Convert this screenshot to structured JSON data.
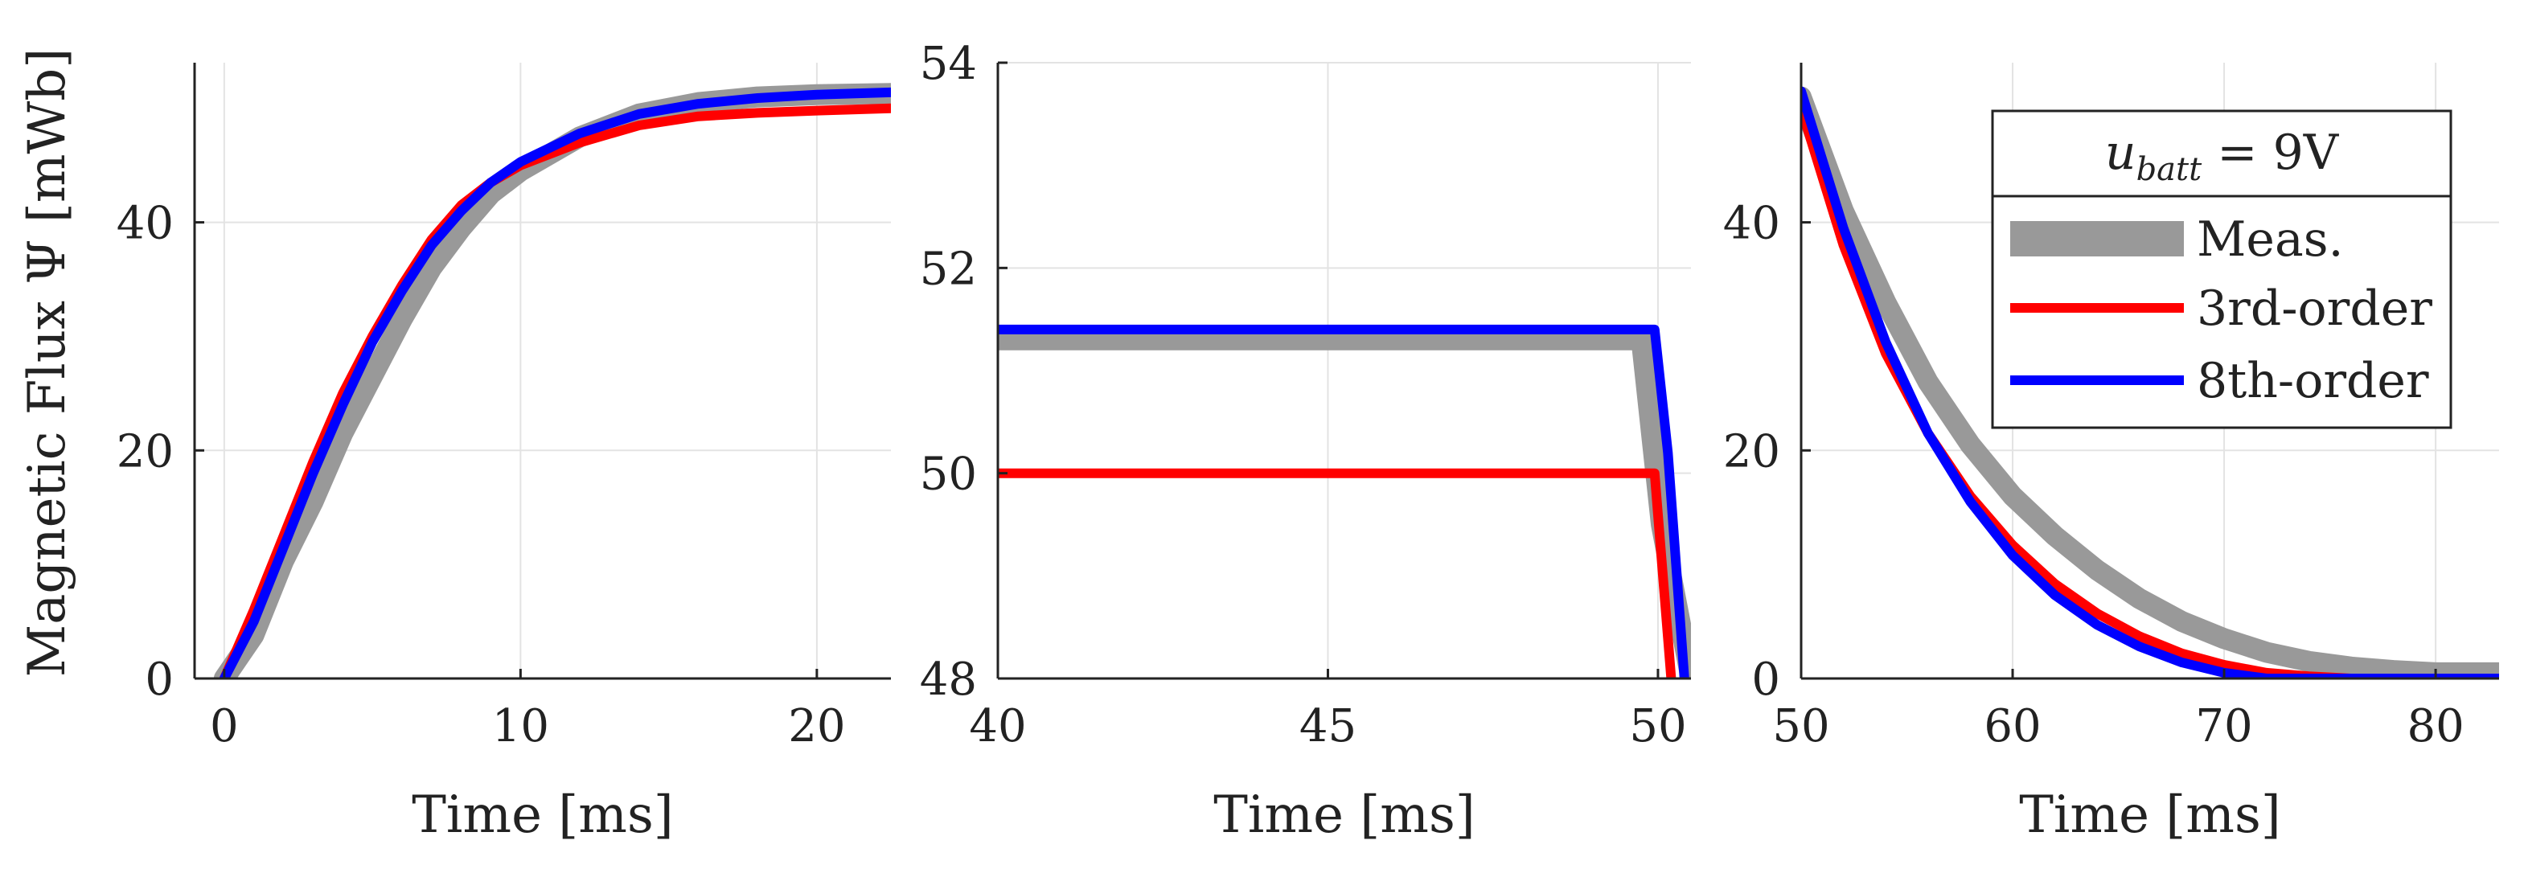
{
  "chart_data": [
    {
      "type": "line",
      "xlabel": "Time [ms]",
      "ylabel": "Magnetic Flux Ψ [mWb]",
      "xlim": [
        -1,
        22.5
      ],
      "ylim": [
        0,
        54
      ],
      "xticks": [
        0,
        10,
        20
      ],
      "yticks": [
        0,
        20,
        40
      ],
      "grid": true,
      "series": [
        {
          "name": "Meas.",
          "color": "#999999",
          "x": [
            0,
            0.5,
            1,
            2,
            3,
            4,
            5,
            6,
            7,
            8,
            9,
            10,
            12,
            14,
            16,
            18,
            20,
            22.5
          ],
          "y": [
            0,
            1.9,
            3.8,
            10.3,
            15.5,
            21.5,
            26.5,
            31.5,
            36,
            39.5,
            42.5,
            44.5,
            47.5,
            49.5,
            50.5,
            51,
            51.2,
            51.3
          ]
        },
        {
          "name": "3rd-order",
          "color": "#ff0000",
          "x": [
            0,
            0.5,
            1,
            2,
            3,
            4,
            5,
            6,
            7,
            8,
            9,
            10,
            12,
            14,
            16,
            18,
            20,
            22.5
          ],
          "y": [
            0,
            3,
            6,
            12.5,
            19,
            25,
            30,
            34.5,
            38.5,
            41.5,
            43.5,
            45,
            47,
            48.5,
            49.3,
            49.6,
            49.8,
            50
          ]
        },
        {
          "name": "8th-order",
          "color": "#0000ff",
          "x": [
            0,
            0.5,
            1,
            2,
            3,
            4,
            5,
            6,
            7,
            8,
            9,
            10,
            12,
            14,
            16,
            18,
            20,
            22.5
          ],
          "y": [
            0,
            2.5,
            5,
            11.5,
            18,
            24,
            29.5,
            34,
            38,
            41,
            43.5,
            45.3,
            47.8,
            49.5,
            50.4,
            50.9,
            51.2,
            51.4
          ]
        }
      ]
    },
    {
      "type": "line",
      "xlabel": "Time [ms]",
      "ylabel": "",
      "xlim": [
        40,
        50.5
      ],
      "ylim": [
        48,
        54
      ],
      "xticks": [
        40,
        45,
        50
      ],
      "yticks": [
        48,
        50,
        52,
        54
      ],
      "grid": true,
      "series": [
        {
          "name": "Meas.",
          "color": "#999999",
          "x": [
            40,
            49.75,
            50.05,
            50.5
          ],
          "y": [
            51.3,
            51.3,
            49.5,
            48
          ]
        },
        {
          "name": "3rd-order",
          "color": "#ff0000",
          "x": [
            40,
            49.95,
            50.2
          ],
          "y": [
            50,
            50,
            48
          ]
        },
        {
          "name": "8th-order",
          "color": "#0000ff",
          "x": [
            40,
            49.95,
            50.15,
            50.4
          ],
          "y": [
            51.4,
            51.4,
            50.2,
            48
          ]
        }
      ]
    },
    {
      "type": "line",
      "xlabel": "Time [ms]",
      "ylabel": "",
      "xlim": [
        50,
        83
      ],
      "ylim": [
        0,
        54
      ],
      "xticks": [
        50,
        60,
        70,
        80
      ],
      "yticks": [
        0,
        20,
        40
      ],
      "grid": true,
      "series": [
        {
          "name": "Meas.",
          "color": "#999999",
          "x": [
            50,
            52,
            54,
            56,
            58,
            60,
            62,
            64,
            66,
            68,
            70,
            72,
            74,
            76,
            78,
            80,
            83
          ],
          "y": [
            51,
            41,
            33,
            26,
            20.5,
            16,
            12.5,
            9.5,
            7,
            5,
            3.5,
            2.3,
            1.5,
            1,
            0.7,
            0.5,
            0.5
          ]
        },
        {
          "name": "3rd-order",
          "color": "#ff0000",
          "x": [
            50,
            52,
            54,
            56,
            58,
            60,
            62,
            64,
            66,
            68,
            70,
            72,
            74,
            76,
            78,
            80,
            83
          ],
          "y": [
            50,
            38,
            28.5,
            21.5,
            16,
            11.7,
            8.3,
            5.7,
            3.7,
            2.2,
            1.2,
            0.5,
            0.2,
            0,
            0,
            0,
            0
          ]
        },
        {
          "name": "8th-order",
          "color": "#0000ff",
          "x": [
            50,
            52,
            54,
            56,
            58,
            60,
            62,
            64,
            66,
            68,
            70,
            72,
            74,
            76,
            78,
            80,
            83
          ],
          "y": [
            51.5,
            39.5,
            29.5,
            21.5,
            15.5,
            10.8,
            7.3,
            4.7,
            2.8,
            1.4,
            0.5,
            0,
            0,
            0,
            0,
            0,
            0
          ]
        }
      ]
    }
  ],
  "legend": {
    "title_var": "u",
    "title_sub": "batt",
    "title_rest": " = 9V",
    "placement": "top-right of third panel",
    "entries": [
      {
        "label": "Meas.",
        "color": "#999999"
      },
      {
        "label": "3rd-order",
        "color": "#ff0000"
      },
      {
        "label": "8th-order",
        "color": "#0000ff"
      }
    ]
  }
}
